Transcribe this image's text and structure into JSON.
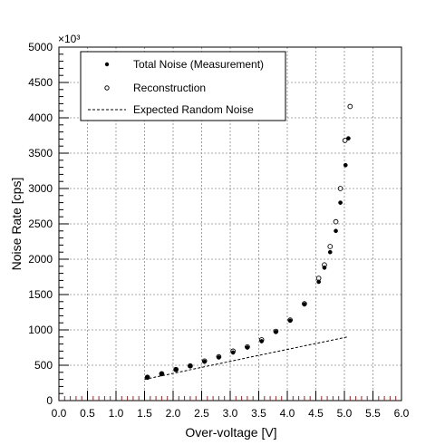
{
  "chart_data": {
    "type": "scatter",
    "title": "",
    "xlabel": "Over-voltage [V]",
    "ylabel": "Noise Rate [cps]",
    "y_multiplier_label": "×10³",
    "xlim": [
      0,
      6
    ],
    "ylim": [
      0,
      5000
    ],
    "x_ticks": [
      "0.0",
      "0.5",
      "1.0",
      "1.5",
      "2.0",
      "2.5",
      "3.0",
      "3.5",
      "4.0",
      "4.5",
      "5.0",
      "5.5",
      "6.0"
    ],
    "y_ticks": [
      "0",
      "500",
      "1000",
      "1500",
      "2000",
      "2500",
      "3000",
      "3500",
      "4000",
      "4500",
      "5000"
    ],
    "grid": true,
    "legend_position": "top-left",
    "series": [
      {
        "name": "Total Noise (Measurement)",
        "marker": "filled-circle",
        "color": "#000000",
        "x": [
          1.55,
          1.8,
          2.05,
          2.3,
          2.55,
          2.8,
          3.05,
          3.3,
          3.55,
          3.8,
          4.05,
          4.3,
          4.55,
          4.65,
          4.75,
          4.85,
          4.93,
          5.02,
          5.07
        ],
        "y": [
          330,
          380,
          440,
          490,
          550,
          610,
          680,
          750,
          840,
          970,
          1130,
          1360,
          1680,
          1880,
          2100,
          2400,
          2800,
          3330,
          3710
        ]
      },
      {
        "name": "Reconstruction",
        "marker": "open-circle",
        "color": "#000000",
        "x": [
          1.55,
          1.8,
          2.05,
          2.3,
          2.55,
          2.8,
          3.05,
          3.3,
          3.55,
          3.8,
          4.05,
          4.3,
          4.55,
          4.65,
          4.75,
          4.85,
          4.93,
          5.01,
          5.1
        ],
        "y": [
          330,
          380,
          440,
          490,
          560,
          620,
          700,
          760,
          860,
          980,
          1140,
          1370,
          1730,
          1920,
          2180,
          2530,
          3000,
          3680,
          4160
        ]
      },
      {
        "name": "Expected Random Noise",
        "line_style": "dashed",
        "color": "#000000",
        "x": [
          1.5,
          3.5,
          5.05
        ],
        "y": [
          300,
          640,
          900
        ]
      }
    ]
  }
}
